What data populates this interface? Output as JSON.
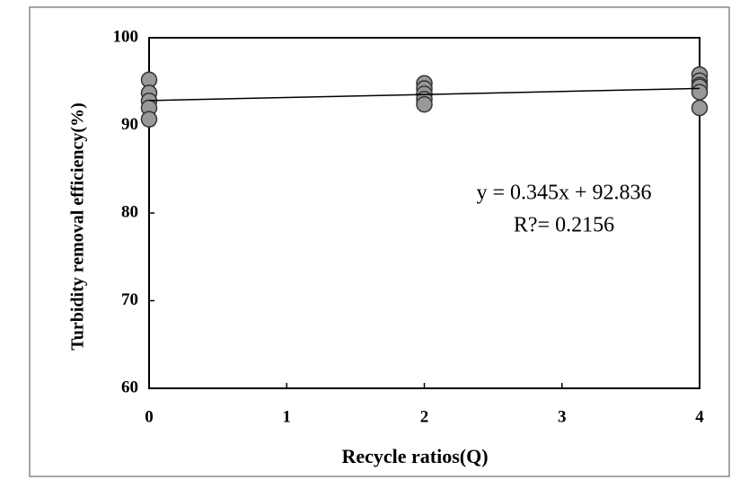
{
  "chart_data": {
    "type": "scatter",
    "x_label": "Recycle ratios(Q)",
    "y_label": "Turbidity removal efficiency(%)",
    "series": [
      {
        "name": "Turbidity removal efficiency",
        "color": "#999999",
        "x": [
          0,
          0,
          0,
          0,
          0,
          2,
          2,
          2,
          2,
          2,
          4,
          4,
          4,
          4,
          4,
          4
        ],
        "values": [
          95.2,
          93.7,
          92.8,
          92.0,
          90.7,
          94.8,
          94.2,
          93.6,
          93.0,
          92.4,
          95.8,
          95.1,
          94.6,
          94.4,
          93.8,
          92.0
        ]
      }
    ],
    "trendline": {
      "x": [
        0,
        4
      ],
      "values": [
        92.836,
        94.216
      ]
    },
    "annotations": [
      "y = 0.345x + 92.836",
      "R?= 0.2156"
    ],
    "xlim": [
      0,
      4
    ],
    "xticks": [
      0,
      1,
      2,
      3,
      4
    ],
    "ylim": [
      60,
      100
    ],
    "yticks": [
      60,
      70,
      80,
      90,
      100
    ]
  }
}
